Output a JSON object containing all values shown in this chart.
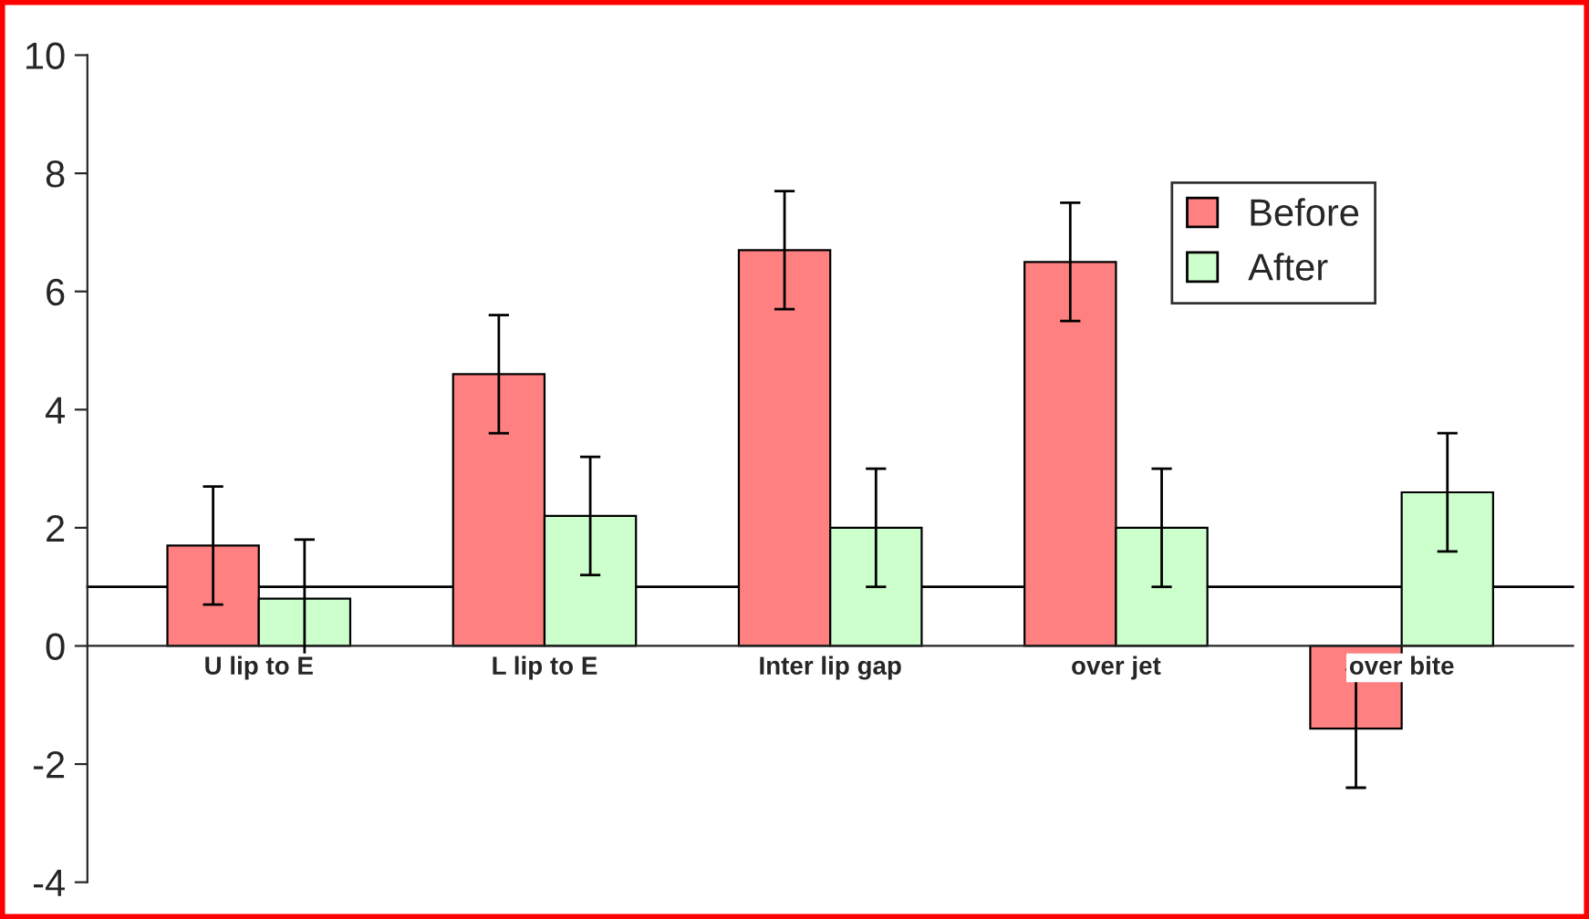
{
  "chart_data": {
    "type": "bar",
    "categories": [
      "U lip to E",
      "L lip to E",
      "Inter lip gap",
      "over jet",
      "over bite"
    ],
    "series": [
      {
        "name": "Before",
        "color": "#ff8080",
        "values": [
          1.7,
          4.6,
          6.7,
          6.5,
          -1.4
        ],
        "errors": [
          1.0,
          1.0,
          1.0,
          1.0,
          1.0
        ]
      },
      {
        "name": "After",
        "color": "#ccffcc",
        "values": [
          0.8,
          2.2,
          2.0,
          2.0,
          2.6
        ],
        "errors": [
          1.0,
          1.0,
          1.0,
          1.0,
          1.0
        ]
      }
    ],
    "ylim": [
      -4,
      10
    ],
    "yticks": [
      -4,
      -2,
      0,
      2,
      4,
      6,
      8,
      10
    ],
    "ref_lines": [
      {
        "axis": "y",
        "value": 1,
        "label": null,
        "color": "#000000"
      }
    ],
    "grid": false,
    "legend": "top right"
  }
}
